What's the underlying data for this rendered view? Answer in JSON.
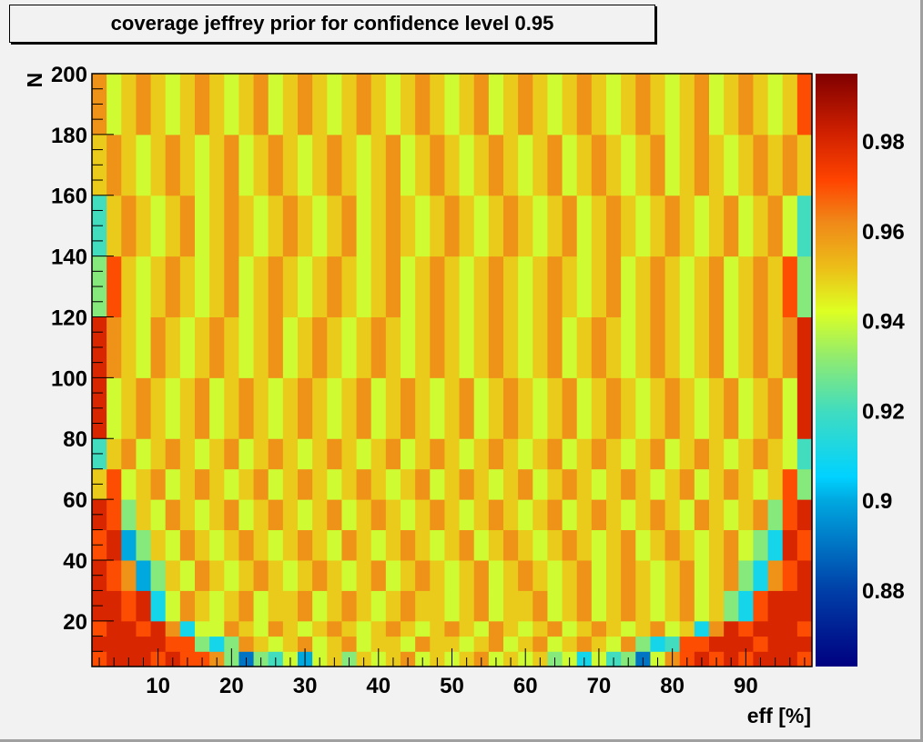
{
  "chart_data": {
    "type": "heatmap",
    "title": "coverage jeffrey prior for confidence level 0.95",
    "xlabel": "eff [%]",
    "ylabel": "N",
    "xlim": [
      1,
      99
    ],
    "ylim": [
      5,
      200
    ],
    "zlim": [
      0.863,
      0.995
    ],
    "x_bin_width": 2,
    "x_ticks": [
      10,
      20,
      30,
      40,
      50,
      60,
      70,
      80,
      90
    ],
    "y_ticks": [
      20,
      40,
      60,
      80,
      100,
      120,
      140,
      160,
      180,
      200
    ],
    "z_ticks": [
      "0.88",
      "0.9",
      "0.92",
      "0.94",
      "0.96",
      "0.98"
    ],
    "colormap": "rainbow",
    "colorbar": "right",
    "y_band_edges": [
      5,
      10,
      15,
      20,
      30,
      40,
      50,
      60,
      70,
      80,
      100,
      120,
      140,
      160,
      180,
      200
    ],
    "z": [
      [
        0.97,
        0.98,
        0.98,
        0.98,
        0.97,
        0.98,
        0.97,
        0.97,
        0.96,
        0.93,
        0.89,
        0.93,
        0.92,
        0.94,
        0.9,
        0.94,
        0.95,
        0.93,
        0.95,
        0.94,
        0.95,
        0.96,
        0.94,
        0.95,
        0.94,
        0.95,
        0.96,
        0.94,
        0.95,
        0.94,
        0.95,
        0.93,
        0.94,
        0.91,
        0.94,
        0.92,
        0.93,
        0.89,
        0.94,
        0.96,
        0.97,
        0.98,
        0.97,
        0.98,
        0.97,
        0.98,
        0.98,
        0.98,
        0.97
      ],
      [
        0.98,
        0.98,
        0.98,
        0.98,
        0.98,
        0.97,
        0.97,
        0.93,
        0.91,
        0.93,
        0.96,
        0.95,
        0.94,
        0.95,
        0.96,
        0.94,
        0.95,
        0.96,
        0.94,
        0.95,
        0.95,
        0.94,
        0.96,
        0.95,
        0.95,
        0.94,
        0.95,
        0.96,
        0.94,
        0.95,
        0.96,
        0.94,
        0.95,
        0.96,
        0.95,
        0.94,
        0.96,
        0.93,
        0.91,
        0.92,
        0.97,
        0.97,
        0.98,
        0.98,
        0.98,
        0.97,
        0.98,
        0.98,
        0.98
      ],
      [
        0.97,
        0.98,
        0.98,
        0.97,
        0.98,
        0.96,
        0.91,
        0.94,
        0.94,
        0.96,
        0.95,
        0.94,
        0.96,
        0.95,
        0.94,
        0.95,
        0.96,
        0.95,
        0.94,
        0.95,
        0.96,
        0.95,
        0.94,
        0.95,
        0.96,
        0.95,
        0.94,
        0.96,
        0.95,
        0.94,
        0.95,
        0.96,
        0.94,
        0.95,
        0.96,
        0.95,
        0.94,
        0.95,
        0.96,
        0.94,
        0.95,
        0.91,
        0.96,
        0.98,
        0.97,
        0.98,
        0.98,
        0.98,
        0.97
      ],
      [
        0.98,
        0.98,
        0.97,
        0.98,
        0.91,
        0.94,
        0.96,
        0.95,
        0.94,
        0.95,
        0.96,
        0.94,
        0.95,
        0.95,
        0.96,
        0.94,
        0.95,
        0.96,
        0.95,
        0.94,
        0.95,
        0.96,
        0.95,
        0.95,
        0.94,
        0.95,
        0.96,
        0.94,
        0.95,
        0.95,
        0.96,
        0.94,
        0.95,
        0.96,
        0.94,
        0.95,
        0.96,
        0.95,
        0.94,
        0.95,
        0.96,
        0.94,
        0.95,
        0.93,
        0.91,
        0.97,
        0.98,
        0.98,
        0.98
      ],
      [
        0.98,
        0.97,
        0.96,
        0.9,
        0.93,
        0.95,
        0.94,
        0.96,
        0.95,
        0.94,
        0.95,
        0.96,
        0.95,
        0.94,
        0.95,
        0.96,
        0.95,
        0.94,
        0.95,
        0.96,
        0.94,
        0.95,
        0.96,
        0.95,
        0.94,
        0.95,
        0.96,
        0.94,
        0.95,
        0.96,
        0.95,
        0.94,
        0.95,
        0.96,
        0.94,
        0.95,
        0.96,
        0.95,
        0.94,
        0.95,
        0.96,
        0.94,
        0.95,
        0.96,
        0.93,
        0.91,
        0.96,
        0.97,
        0.98
      ],
      [
        0.97,
        0.98,
        0.9,
        0.93,
        0.95,
        0.94,
        0.96,
        0.95,
        0.94,
        0.95,
        0.96,
        0.95,
        0.94,
        0.95,
        0.96,
        0.95,
        0.94,
        0.96,
        0.95,
        0.94,
        0.95,
        0.96,
        0.95,
        0.94,
        0.95,
        0.96,
        0.94,
        0.95,
        0.96,
        0.95,
        0.94,
        0.95,
        0.96,
        0.95,
        0.94,
        0.95,
        0.96,
        0.94,
        0.95,
        0.96,
        0.95,
        0.94,
        0.95,
        0.96,
        0.94,
        0.93,
        0.91,
        0.98,
        0.97
      ],
      [
        0.98,
        0.97,
        0.93,
        0.95,
        0.94,
        0.96,
        0.95,
        0.94,
        0.95,
        0.96,
        0.94,
        0.95,
        0.96,
        0.95,
        0.94,
        0.95,
        0.96,
        0.94,
        0.95,
        0.96,
        0.95,
        0.94,
        0.95,
        0.96,
        0.95,
        0.94,
        0.95,
        0.96,
        0.95,
        0.94,
        0.95,
        0.96,
        0.94,
        0.95,
        0.96,
        0.95,
        0.94,
        0.95,
        0.96,
        0.95,
        0.94,
        0.96,
        0.95,
        0.94,
        0.95,
        0.96,
        0.93,
        0.97,
        0.98
      ],
      [
        0.95,
        0.97,
        0.94,
        0.95,
        0.96,
        0.94,
        0.95,
        0.96,
        0.95,
        0.94,
        0.95,
        0.96,
        0.94,
        0.95,
        0.96,
        0.95,
        0.94,
        0.95,
        0.96,
        0.95,
        0.94,
        0.95,
        0.96,
        0.94,
        0.95,
        0.96,
        0.95,
        0.94,
        0.95,
        0.96,
        0.94,
        0.95,
        0.96,
        0.95,
        0.94,
        0.95,
        0.96,
        0.95,
        0.94,
        0.95,
        0.96,
        0.94,
        0.95,
        0.96,
        0.95,
        0.94,
        0.95,
        0.97,
        0.93
      ],
      [
        0.92,
        0.95,
        0.96,
        0.94,
        0.95,
        0.96,
        0.95,
        0.94,
        0.95,
        0.96,
        0.94,
        0.95,
        0.96,
        0.95,
        0.94,
        0.95,
        0.96,
        0.95,
        0.94,
        0.95,
        0.96,
        0.94,
        0.95,
        0.96,
        0.95,
        0.94,
        0.95,
        0.96,
        0.95,
        0.94,
        0.95,
        0.96,
        0.94,
        0.95,
        0.96,
        0.95,
        0.94,
        0.95,
        0.96,
        0.94,
        0.95,
        0.96,
        0.95,
        0.94,
        0.95,
        0.96,
        0.95,
        0.94,
        0.92
      ],
      [
        0.98,
        0.94,
        0.95,
        0.96,
        0.95,
        0.94,
        0.95,
        0.96,
        0.94,
        0.95,
        0.96,
        0.95,
        0.94,
        0.95,
        0.96,
        0.95,
        0.94,
        0.95,
        0.96,
        0.94,
        0.95,
        0.96,
        0.95,
        0.94,
        0.95,
        0.96,
        0.94,
        0.95,
        0.96,
        0.95,
        0.94,
        0.95,
        0.96,
        0.94,
        0.95,
        0.96,
        0.95,
        0.94,
        0.95,
        0.96,
        0.95,
        0.94,
        0.95,
        0.96,
        0.94,
        0.95,
        0.96,
        0.94,
        0.98
      ],
      [
        0.98,
        0.96,
        0.95,
        0.94,
        0.96,
        0.95,
        0.94,
        0.95,
        0.96,
        0.95,
        0.94,
        0.95,
        0.96,
        0.94,
        0.95,
        0.96,
        0.95,
        0.94,
        0.95,
        0.96,
        0.95,
        0.94,
        0.95,
        0.96,
        0.95,
        0.94,
        0.95,
        0.96,
        0.95,
        0.94,
        0.95,
        0.96,
        0.94,
        0.95,
        0.96,
        0.95,
        0.94,
        0.95,
        0.96,
        0.95,
        0.94,
        0.95,
        0.96,
        0.94,
        0.95,
        0.96,
        0.95,
        0.96,
        0.98
      ],
      [
        0.93,
        0.97,
        0.95,
        0.94,
        0.95,
        0.96,
        0.95,
        0.94,
        0.95,
        0.96,
        0.94,
        0.95,
        0.96,
        0.95,
        0.94,
        0.95,
        0.96,
        0.95,
        0.94,
        0.95,
        0.96,
        0.94,
        0.95,
        0.96,
        0.95,
        0.94,
        0.95,
        0.96,
        0.95,
        0.94,
        0.95,
        0.96,
        0.95,
        0.94,
        0.95,
        0.96,
        0.94,
        0.95,
        0.96,
        0.95,
        0.94,
        0.95,
        0.96,
        0.94,
        0.95,
        0.96,
        0.95,
        0.97,
        0.93
      ],
      [
        0.92,
        0.95,
        0.96,
        0.95,
        0.94,
        0.95,
        0.96,
        0.94,
        0.95,
        0.96,
        0.95,
        0.94,
        0.95,
        0.96,
        0.95,
        0.94,
        0.95,
        0.96,
        0.94,
        0.95,
        0.96,
        0.95,
        0.94,
        0.95,
        0.96,
        0.95,
        0.94,
        0.95,
        0.96,
        0.95,
        0.94,
        0.95,
        0.96,
        0.94,
        0.95,
        0.96,
        0.95,
        0.94,
        0.95,
        0.96,
        0.95,
        0.94,
        0.95,
        0.96,
        0.94,
        0.95,
        0.96,
        0.94,
        0.92
      ],
      [
        0.95,
        0.96,
        0.95,
        0.94,
        0.95,
        0.96,
        0.95,
        0.94,
        0.95,
        0.96,
        0.94,
        0.95,
        0.96,
        0.95,
        0.94,
        0.95,
        0.96,
        0.95,
        0.94,
        0.95,
        0.96,
        0.94,
        0.95,
        0.96,
        0.95,
        0.94,
        0.95,
        0.96,
        0.95,
        0.94,
        0.95,
        0.96,
        0.94,
        0.95,
        0.96,
        0.95,
        0.94,
        0.95,
        0.96,
        0.94,
        0.95,
        0.96,
        0.95,
        0.94,
        0.95,
        0.96,
        0.95,
        0.96,
        0.95
      ],
      [
        0.96,
        0.94,
        0.95,
        0.96,
        0.95,
        0.94,
        0.95,
        0.96,
        0.95,
        0.94,
        0.95,
        0.96,
        0.94,
        0.95,
        0.96,
        0.95,
        0.94,
        0.95,
        0.96,
        0.95,
        0.94,
        0.95,
        0.96,
        0.95,
        0.94,
        0.95,
        0.96,
        0.94,
        0.95,
        0.96,
        0.95,
        0.94,
        0.95,
        0.96,
        0.95,
        0.94,
        0.95,
        0.96,
        0.95,
        0.94,
        0.95,
        0.96,
        0.94,
        0.95,
        0.96,
        0.95,
        0.94,
        0.95,
        0.97
      ]
    ]
  }
}
